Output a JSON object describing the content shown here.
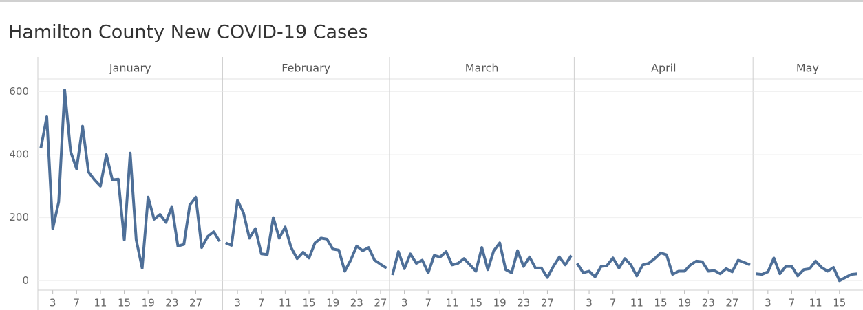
{
  "title": "Hamilton County New COVID-19 Cases",
  "chart_data": [
    {
      "type": "line",
      "title": "January",
      "color": "#4e6f98",
      "x": [
        1,
        2,
        3,
        4,
        5,
        6,
        7,
        8,
        9,
        10,
        11,
        12,
        13,
        14,
        15,
        16,
        17,
        18,
        19,
        20,
        21,
        22,
        23,
        24,
        25,
        26,
        27,
        28,
        29,
        30,
        31
      ],
      "values": [
        420,
        520,
        165,
        250,
        605,
        410,
        355,
        490,
        345,
        320,
        300,
        400,
        320,
        322,
        130,
        405,
        130,
        40,
        265,
        195,
        210,
        185,
        235,
        110,
        115,
        240,
        265,
        105,
        140,
        155,
        125
      ],
      "xlim": [
        0.5,
        31.5
      ],
      "xticks": [
        3,
        7,
        11,
        15,
        19,
        23,
        27
      ],
      "ylim": [
        -30,
        640
      ],
      "yticks": [
        0,
        200,
        400,
        600
      ],
      "grid": true
    },
    {
      "type": "line",
      "title": "February",
      "color": "#4e6f98",
      "x": [
        1,
        2,
        3,
        4,
        5,
        6,
        7,
        8,
        9,
        10,
        11,
        12,
        13,
        14,
        15,
        16,
        17,
        18,
        19,
        20,
        21,
        22,
        23,
        24,
        25,
        26,
        27,
        28
      ],
      "values": [
        120,
        112,
        255,
        215,
        135,
        165,
        85,
        83,
        200,
        135,
        170,
        105,
        70,
        90,
        72,
        120,
        135,
        132,
        100,
        97,
        30,
        65,
        110,
        95,
        105,
        65,
        52,
        40
      ],
      "xlim": [
        0.5,
        28.5
      ],
      "xticks": [
        3,
        7,
        11,
        15,
        19,
        23,
        27
      ],
      "ylim": [
        -30,
        640
      ],
      "yticks": [
        0,
        200,
        400,
        600
      ],
      "grid": true
    },
    {
      "type": "line",
      "title": "March",
      "color": "#4e6f98",
      "x": [
        1,
        2,
        3,
        4,
        5,
        6,
        7,
        8,
        9,
        10,
        11,
        12,
        13,
        14,
        15,
        16,
        17,
        18,
        19,
        20,
        21,
        22,
        23,
        24,
        25,
        26,
        27,
        28,
        29,
        30,
        31
      ],
      "values": [
        18,
        92,
        38,
        85,
        55,
        65,
        25,
        80,
        75,
        92,
        50,
        55,
        70,
        50,
        30,
        105,
        35,
        95,
        120,
        35,
        25,
        95,
        45,
        75,
        40,
        40,
        10,
        45,
        75,
        50,
        80
      ],
      "xlim": [
        0.5,
        31.5
      ],
      "xticks": [
        3,
        7,
        11,
        15,
        19,
        23,
        27
      ],
      "ylim": [
        -30,
        640
      ],
      "yticks": [
        0,
        200,
        400,
        600
      ],
      "grid": true
    },
    {
      "type": "line",
      "title": "April",
      "color": "#4e6f98",
      "x": [
        1,
        2,
        3,
        4,
        5,
        6,
        7,
        8,
        9,
        10,
        11,
        12,
        13,
        14,
        15,
        16,
        17,
        18,
        19,
        20,
        21,
        22,
        23,
        24,
        25,
        26,
        27,
        28,
        29,
        30
      ],
      "values": [
        55,
        25,
        30,
        12,
        45,
        48,
        72,
        40,
        70,
        50,
        15,
        50,
        55,
        70,
        88,
        82,
        20,
        30,
        30,
        50,
        62,
        60,
        30,
        32,
        22,
        38,
        28,
        65,
        58,
        50
      ],
      "xlim": [
        0.5,
        30.5
      ],
      "xticks": [
        3,
        7,
        11,
        15,
        19,
        23,
        27
      ],
      "ylim": [
        -30,
        640
      ],
      "yticks": [
        0,
        200,
        400,
        600
      ],
      "grid": true
    },
    {
      "type": "line",
      "title": "May",
      "color": "#4e6f98",
      "x": [
        1,
        2,
        3,
        4,
        5,
        6,
        7,
        8,
        9,
        10,
        11,
        12,
        13,
        14,
        15,
        16,
        17,
        18
      ],
      "values": [
        22,
        20,
        28,
        72,
        22,
        45,
        45,
        15,
        35,
        38,
        62,
        42,
        30,
        42,
        0,
        10,
        20,
        22
      ],
      "xlim": [
        0.5,
        18.8
      ],
      "xticks": [
        3,
        7,
        11,
        15
      ],
      "ylim": [
        -30,
        640
      ],
      "yticks": [
        0,
        200,
        400,
        600
      ],
      "grid": true
    }
  ]
}
